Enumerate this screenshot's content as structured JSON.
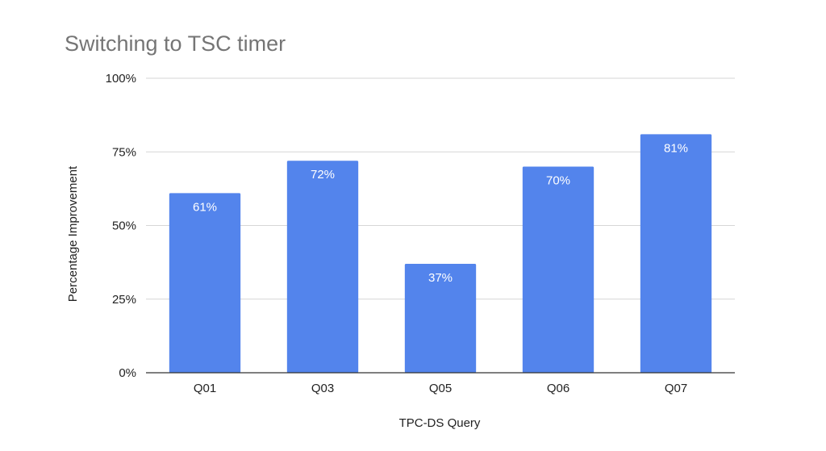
{
  "chart_data": {
    "type": "bar",
    "title": "Switching to TSC timer",
    "xlabel": "TPC-DS Query",
    "ylabel": "Percentage Improvement",
    "categories": [
      "Q01",
      "Q03",
      "Q05",
      "Q06",
      "Q07"
    ],
    "values": [
      61,
      72,
      37,
      70,
      81
    ],
    "data_labels": [
      "61%",
      "72%",
      "37%",
      "70%",
      "81%"
    ],
    "ylim": [
      0,
      100
    ],
    "yticks": [
      {
        "value": 0,
        "label": "0%"
      },
      {
        "value": 25,
        "label": "25%"
      },
      {
        "value": 50,
        "label": "50%"
      },
      {
        "value": 75,
        "label": "75%"
      },
      {
        "value": 100,
        "label": "100%"
      }
    ],
    "grid": true,
    "legend": "none",
    "bar_color": "#5384ec"
  }
}
